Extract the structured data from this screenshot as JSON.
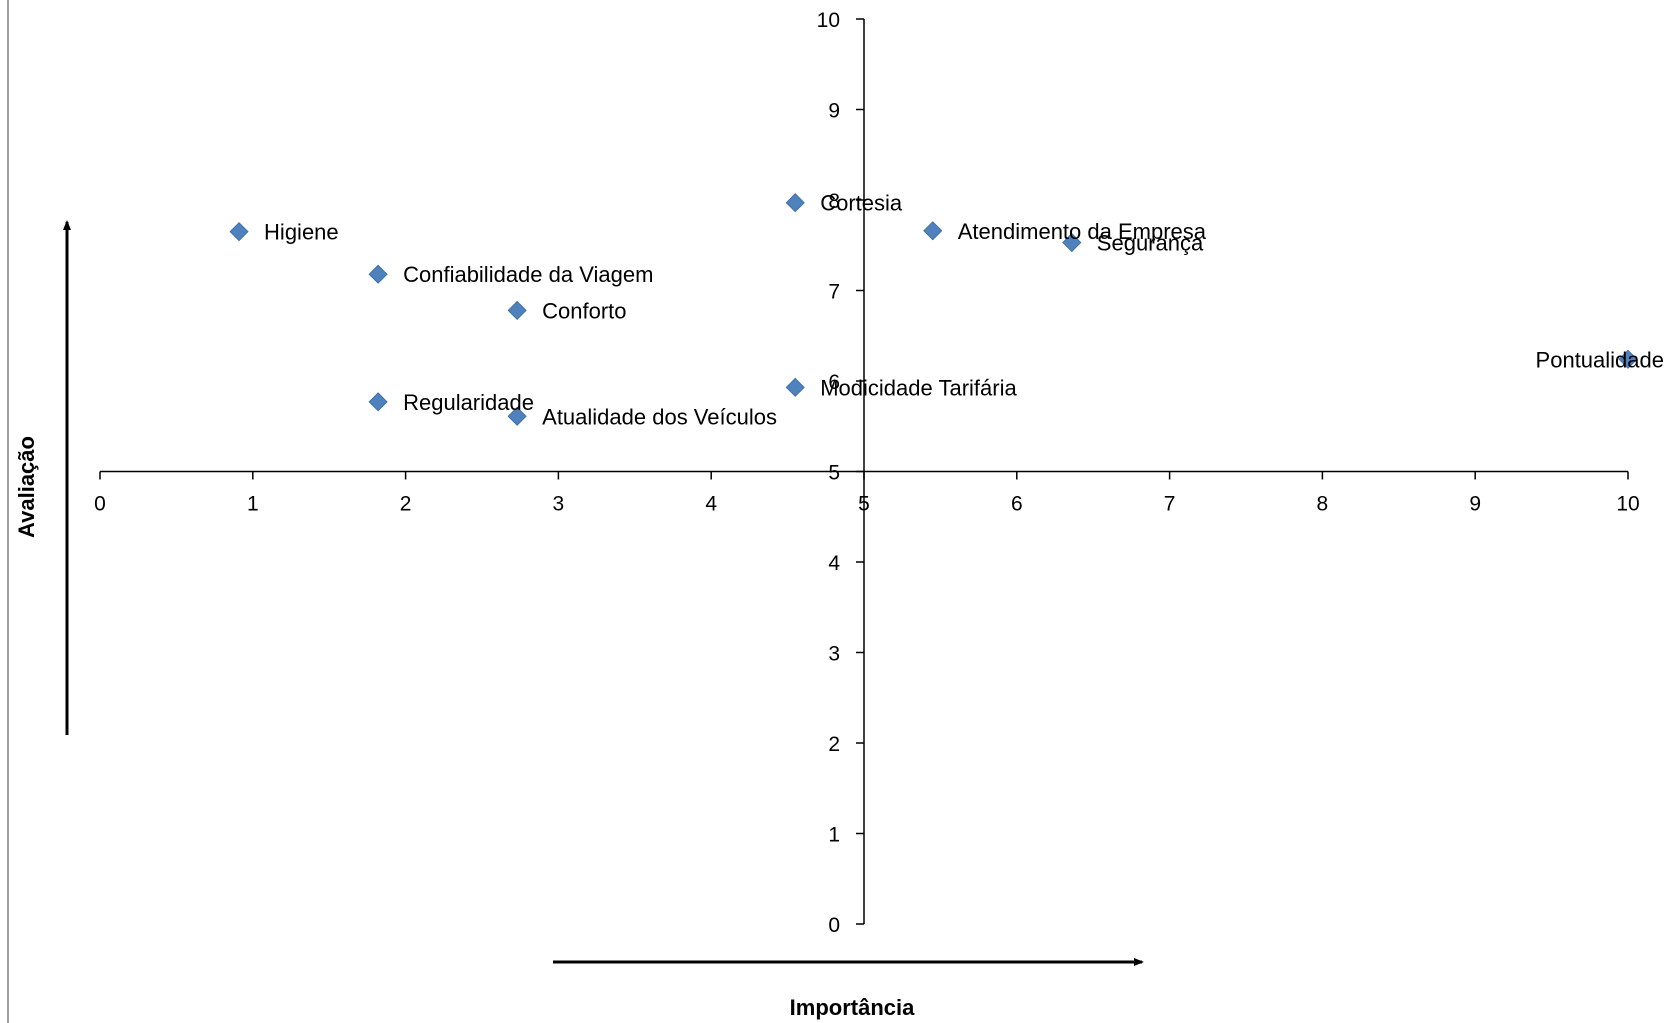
{
  "chart_data": {
    "type": "scatter",
    "xlabel": "Importância",
    "ylabel": "Avaliação",
    "xlim": [
      0,
      10
    ],
    "ylim": [
      0,
      10
    ],
    "x_ticks": [
      "0",
      "1",
      "2",
      "3",
      "4",
      "5",
      "6",
      "7",
      "8",
      "9",
      "10"
    ],
    "y_ticks": [
      "0",
      "1",
      "2",
      "3",
      "4",
      "5",
      "6",
      "7",
      "8",
      "9",
      "10"
    ],
    "x_axis_crosses_y_at": 5,
    "y_axis_crosses_x_at": 5,
    "marker": "diamond",
    "marker_color": "#4F81BD",
    "grid": false,
    "legend": "none",
    "points": [
      {
        "label": "Higiene",
        "x": 0.91,
        "y": 7.65
      },
      {
        "label": "Confiabilidade da Viagem",
        "x": 1.82,
        "y": 7.18
      },
      {
        "label": "Conforto",
        "x": 2.73,
        "y": 6.78
      },
      {
        "label": "Regularidade",
        "x": 1.82,
        "y": 5.77
      },
      {
        "label": "Atualidade dos Veículos",
        "x": 2.73,
        "y": 5.61
      },
      {
        "label": "Cortesia",
        "x": 4.55,
        "y": 7.97
      },
      {
        "label": "Modicidade Tarifária",
        "x": 4.55,
        "y": 5.93
      },
      {
        "label": "Atendimento da Empresa",
        "x": 5.45,
        "y": 7.66
      },
      {
        "label": "Segurança",
        "x": 6.36,
        "y": 7.53
      },
      {
        "label": "Pontualidade",
        "x": 10.0,
        "y": 6.24
      }
    ]
  }
}
